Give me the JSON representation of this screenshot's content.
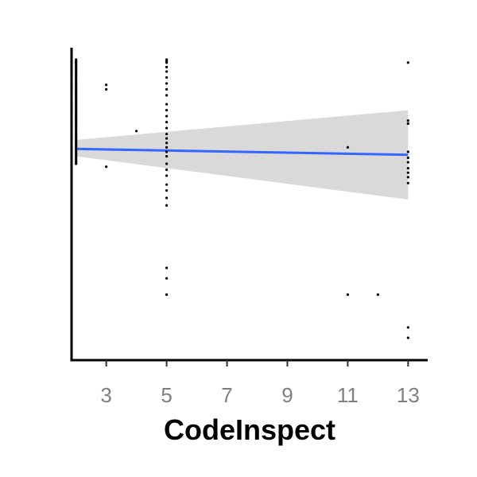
{
  "chart_data": {
    "type": "scatter",
    "title": "",
    "xlabel": "CodeInspect",
    "ylabel": "",
    "xlim": [
      1.85,
      13.65
    ],
    "ylim": [
      -1.02,
      1.08
    ],
    "x_ticks": [
      3,
      5,
      7,
      9,
      11,
      13
    ],
    "x_tick_labels": [
      "3",
      "5",
      "7",
      "9",
      "11",
      "13"
    ],
    "y_ticks": [],
    "grid": false,
    "legend": "none",
    "colors": {
      "points": "#000000",
      "smooth_line": "#3366ff",
      "confidence_band": "#d9d9d9",
      "axis": "#000000",
      "tick_label": "#7f7f7f"
    },
    "points": {
      "x": [
        2,
        2,
        2,
        2,
        2,
        2,
        2,
        2,
        2,
        2,
        2,
        2,
        2,
        2,
        2,
        2,
        2,
        2,
        2,
        2,
        2,
        2,
        2,
        2,
        2,
        2,
        2,
        2,
        2,
        2,
        2,
        2,
        2,
        2,
        2,
        2,
        2,
        2,
        2,
        2,
        2,
        2,
        2,
        2,
        2,
        2,
        2,
        2,
        2,
        2,
        2,
        2,
        2,
        2,
        2,
        2,
        2,
        2,
        2,
        2,
        2,
        2,
        2,
        2,
        2,
        2,
        2,
        2,
        2,
        2,
        2,
        3,
        3,
        3,
        4,
        5,
        5,
        5,
        5,
        5,
        5,
        5,
        5,
        5,
        5,
        5,
        5,
        5,
        5,
        5,
        5,
        5,
        5,
        5,
        5,
        5,
        5,
        5,
        5,
        5,
        5,
        5,
        5,
        5,
        5,
        11,
        11,
        12,
        13,
        13,
        13,
        13,
        13,
        13,
        13,
        13,
        13,
        13,
        13,
        13
      ],
      "y": [
        1.0,
        0.99,
        0.98,
        0.97,
        0.96,
        0.95,
        0.94,
        0.93,
        0.92,
        0.91,
        0.9,
        0.89,
        0.88,
        0.87,
        0.86,
        0.85,
        0.84,
        0.83,
        0.82,
        0.81,
        0.8,
        0.79,
        0.78,
        0.77,
        0.76,
        0.75,
        0.74,
        0.73,
        0.72,
        0.71,
        0.7,
        0.69,
        0.68,
        0.67,
        0.66,
        0.65,
        0.64,
        0.63,
        0.62,
        0.61,
        0.6,
        0.59,
        0.58,
        0.57,
        0.56,
        0.55,
        0.54,
        0.53,
        0.52,
        0.51,
        0.5,
        0.49,
        0.48,
        0.47,
        0.46,
        0.45,
        0.44,
        0.43,
        0.42,
        0.41,
        0.4,
        0.39,
        0.38,
        0.37,
        0.36,
        0.35,
        0.34,
        0.33,
        0.32,
        0.31,
        0.3,
        0.83,
        0.8,
        0.28,
        0.52,
        1.0,
        0.99,
        0.98,
        0.95,
        0.92,
        0.88,
        0.84,
        0.8,
        0.76,
        0.7,
        0.66,
        0.62,
        0.58,
        0.54,
        0.5,
        0.47,
        0.44,
        0.41,
        0.38,
        0.35,
        0.3,
        0.26,
        0.22,
        0.16,
        0.12,
        0.07,
        0.02,
        -0.4,
        -0.47,
        -0.58,
        0.41,
        -0.58,
        -0.58,
        0.98,
        0.59,
        0.57,
        0.38,
        0.34,
        0.31,
        0.27,
        0.24,
        0.21,
        0.17,
        -0.8,
        -0.87
      ]
    },
    "smooth": {
      "x": [
        2,
        13
      ],
      "y": [
        0.4,
        0.36
      ],
      "ci_lower": [
        0.35,
        0.06
      ],
      "ci_upper": [
        0.46,
        0.66
      ]
    }
  }
}
